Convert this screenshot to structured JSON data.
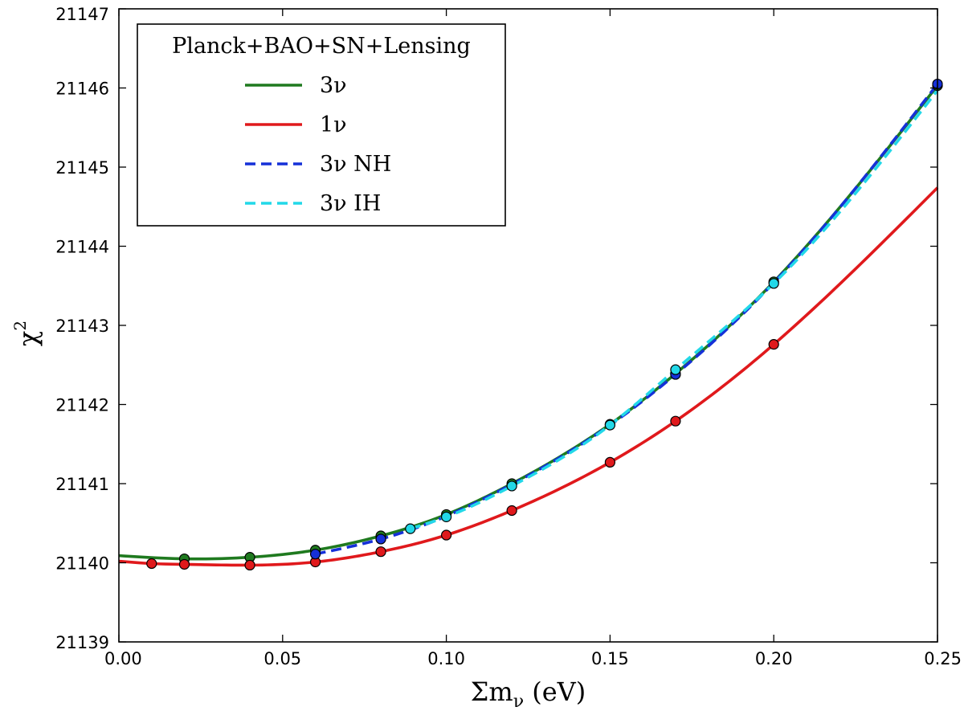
{
  "chart_data": {
    "type": "line",
    "xlabel": "Σm_ν (eV)",
    "ylabel": "χ²",
    "xlim": [
      0.0,
      0.25
    ],
    "ylim": [
      21139,
      21147
    ],
    "x_ticks": [
      "0.00",
      "0.05",
      "0.10",
      "0.15",
      "0.20",
      "0.25"
    ],
    "y_ticks": [
      "21139",
      "21140",
      "21141",
      "21142",
      "21143",
      "21144",
      "21145",
      "21146",
      "21147"
    ],
    "legend": {
      "title": "Planck+BAO+SN+Lensing",
      "placement": "upper-left",
      "entries": [
        {
          "label": "3ν",
          "color": "#1f7a1f",
          "style": "solid"
        },
        {
          "label": "1ν",
          "color": "#e0191c",
          "style": "solid"
        },
        {
          "label": "3ν NH",
          "color": "#1530d8",
          "style": "dashed"
        },
        {
          "label": "3ν IH",
          "color": "#22d8e8",
          "style": "dashed"
        }
      ]
    },
    "series": [
      {
        "name": "3ν",
        "color": "#1f7a1f",
        "style": "solid",
        "x": [
          0.0,
          0.02,
          0.04,
          0.06,
          0.08,
          0.1,
          0.12,
          0.15,
          0.17,
          0.2,
          0.25
        ],
        "y": [
          21140.09,
          21140.05,
          21140.07,
          21140.16,
          21140.34,
          21140.61,
          21141.0,
          21141.75,
          21142.39,
          21143.55,
          21146.03
        ],
        "markers_x": [
          0.02,
          0.04,
          0.06,
          0.08,
          0.1,
          0.12,
          0.15,
          0.17,
          0.2,
          0.25
        ]
      },
      {
        "name": "1ν",
        "color": "#e0191c",
        "style": "solid",
        "x": [
          0.0,
          0.01,
          0.02,
          0.04,
          0.06,
          0.08,
          0.1,
          0.12,
          0.15,
          0.17,
          0.2,
          0.25
        ],
        "y": [
          21140.02,
          21139.99,
          21139.98,
          21139.97,
          21140.01,
          21140.14,
          21140.35,
          21140.66,
          21141.27,
          21141.79,
          21142.76,
          21144.74
        ],
        "markers_x": [
          0.01,
          0.02,
          0.04,
          0.06,
          0.08,
          0.1,
          0.12,
          0.15,
          0.17,
          0.2
        ]
      },
      {
        "name": "3ν NH",
        "color": "#1530d8",
        "style": "dashed",
        "x": [
          0.06,
          0.08,
          0.1,
          0.12,
          0.15,
          0.17,
          0.2,
          0.25
        ],
        "y": [
          21140.11,
          21140.3,
          21140.59,
          21140.99,
          21141.74,
          21142.38,
          21143.54,
          21146.05
        ],
        "markers_x": [
          0.06,
          0.08,
          0.17,
          0.25
        ]
      },
      {
        "name": "3ν IH",
        "color": "#22d8e8",
        "style": "dashed",
        "x": [
          0.089,
          0.1,
          0.12,
          0.15,
          0.17,
          0.2,
          0.25
        ],
        "y": [
          21140.43,
          21140.58,
          21140.97,
          21141.74,
          21142.44,
          21143.53,
          21145.97
        ],
        "markers_x": [
          0.089,
          0.1,
          0.12,
          0.15,
          0.17,
          0.2
        ]
      }
    ]
  }
}
